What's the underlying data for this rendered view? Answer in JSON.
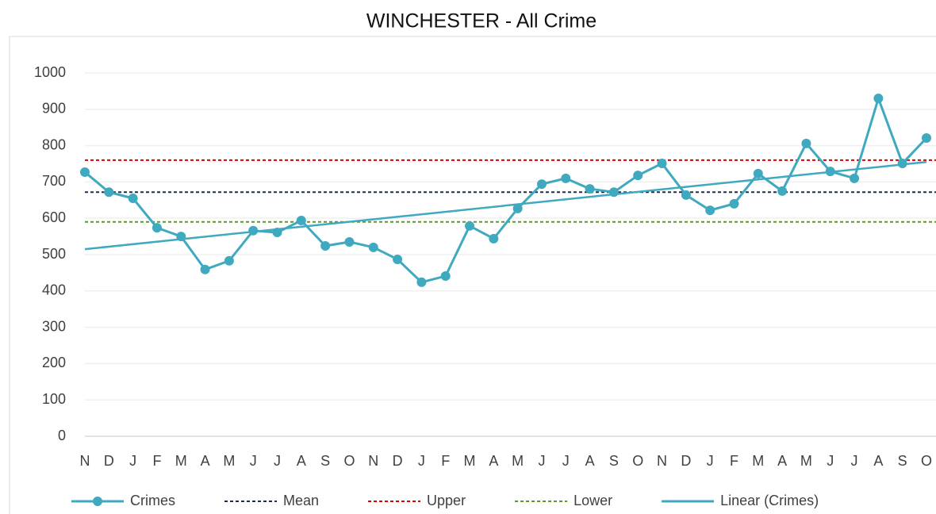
{
  "chart_data": {
    "type": "line",
    "title": "WINCHESTER - All Crime",
    "categories": [
      "N",
      "D",
      "J",
      "F",
      "M",
      "A",
      "M",
      "J",
      "J",
      "A",
      "S",
      "O",
      "N",
      "D",
      "J",
      "F",
      "M",
      "A",
      "M",
      "J",
      "J",
      "A",
      "S",
      "O",
      "N",
      "D",
      "J",
      "F",
      "M",
      "A",
      "M",
      "J",
      "J",
      "A",
      "S",
      "O"
    ],
    "series": [
      {
        "name": "Crimes",
        "color": "#3fa9bf",
        "values": [
          727,
          672,
          655,
          574,
          550,
          459,
          483,
          566,
          561,
          594,
          524,
          535,
          520,
          487,
          424,
          441,
          579,
          544,
          627,
          694,
          710,
          681,
          672,
          718,
          751,
          664,
          622,
          640,
          723,
          675,
          806,
          729,
          710,
          930,
          751,
          821
        ]
      }
    ],
    "reference_lines": [
      {
        "name": "Mean",
        "color": "#1f2d4d",
        "value": 672
      },
      {
        "name": "Upper",
        "color": "#e00000",
        "value": 760
      },
      {
        "name": "Lower",
        "color": "#5a9a28",
        "value": 590
      }
    ],
    "trendline": {
      "name": "Linear (Crimes)",
      "color": "#3fa9bf",
      "endpoints": [
        515,
        755
      ]
    },
    "ylim": [
      0,
      1000
    ],
    "yticks": [
      0,
      100,
      200,
      300,
      400,
      500,
      600,
      700,
      800,
      900,
      1000
    ],
    "grid": true,
    "legend": "bottom"
  }
}
